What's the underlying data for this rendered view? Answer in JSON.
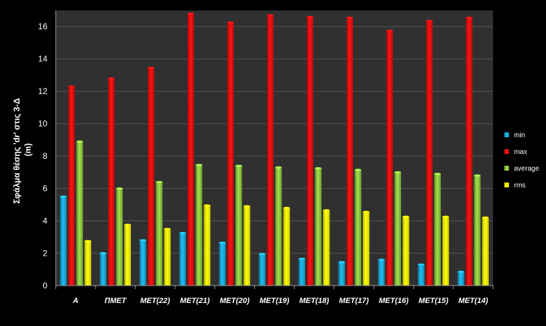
{
  "chart_data": {
    "type": "bar",
    "ylabel_line1": "Σφάλμα θέσης 'dr' στις 3-Δ",
    "ylabel_line2": "(m)",
    "ylim": [
      0,
      17
    ],
    "yticks": [
      0,
      2,
      4,
      6,
      8,
      10,
      12,
      14,
      16
    ],
    "grid": true,
    "legend_position": "right",
    "categories": [
      "A",
      "ΠΜΕΤ",
      "MET(22)",
      "MET(21)",
      "MET(20)",
      "MET(19)",
      "MET(18)",
      "MET(17)",
      "MET(16)",
      "MET(15)",
      "MET(14)"
    ],
    "series": [
      {
        "name": "min",
        "color": "#1aa7d6",
        "values": [
          5.5,
          2.0,
          2.8,
          3.25,
          2.65,
          1.95,
          1.65,
          1.45,
          1.6,
          1.3,
          0.85
        ]
      },
      {
        "name": "max",
        "color": "#e01010",
        "values": [
          12.3,
          12.8,
          13.45,
          16.8,
          16.25,
          16.7,
          16.6,
          16.55,
          15.75,
          16.35,
          16.55
        ]
      },
      {
        "name": "average",
        "color": "#8cc63f",
        "values": [
          8.9,
          6.0,
          6.4,
          7.45,
          7.4,
          7.3,
          7.25,
          7.15,
          7.0,
          6.9,
          6.8
        ]
      },
      {
        "name": "rms",
        "color": "#ffff00",
        "values": [
          2.75,
          3.75,
          3.5,
          4.95,
          4.9,
          4.8,
          4.65,
          4.55,
          4.25,
          4.25,
          4.2
        ]
      }
    ]
  },
  "colors": {
    "background": "#000000",
    "plot_area": "#303030",
    "grid": "#555555",
    "axis": "#9a9a9a"
  }
}
